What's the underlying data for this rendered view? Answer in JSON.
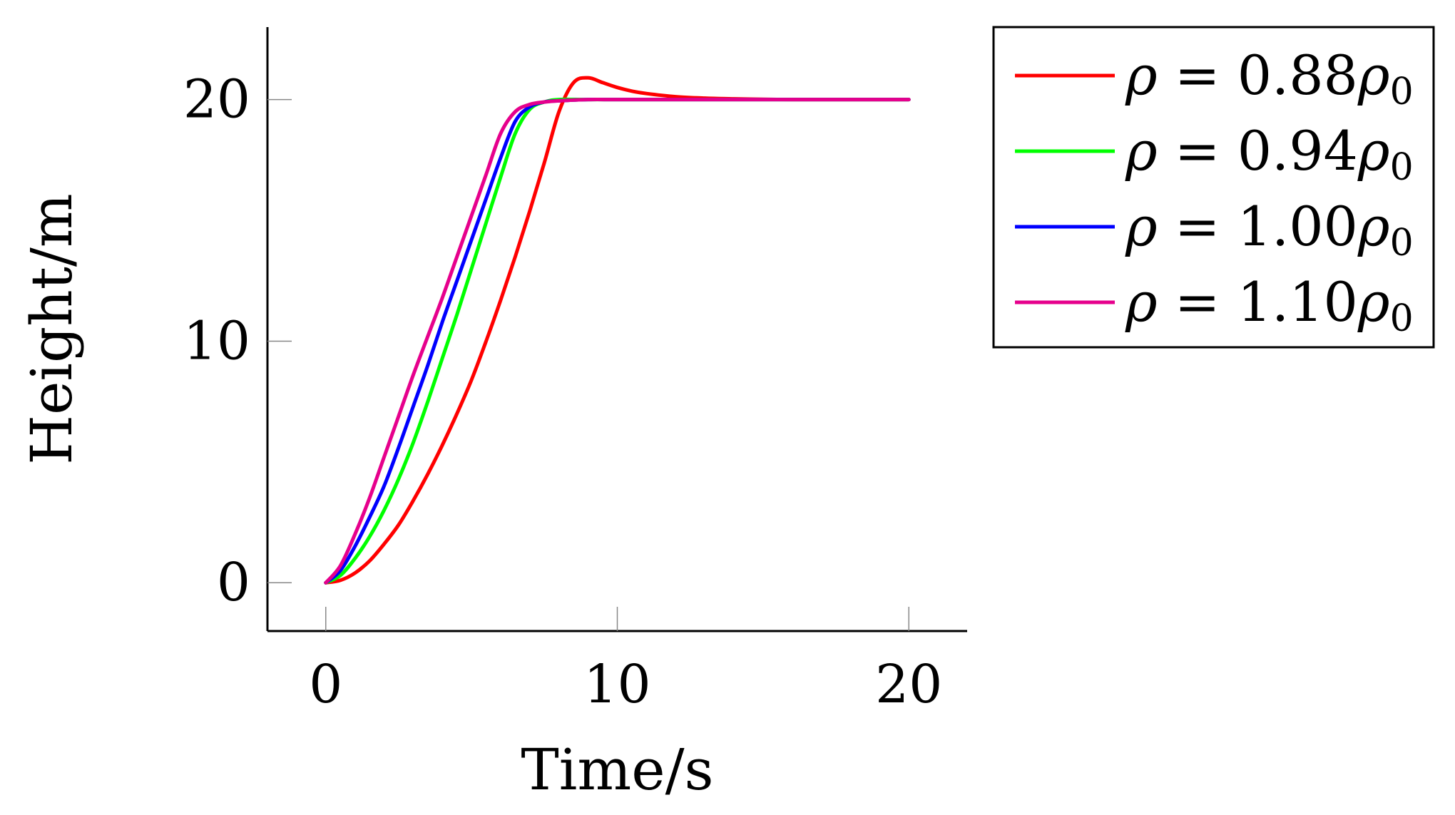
{
  "chart_data": {
    "type": "line",
    "title": "",
    "xlabel": "Time/s",
    "ylabel": "Height/m",
    "xlim": [
      -2,
      22
    ],
    "ylim": [
      -2,
      23
    ],
    "xticks": [
      0,
      10,
      20
    ],
    "yticks": [
      0,
      10,
      20
    ],
    "xtick_labels": [
      "0",
      "10",
      "20"
    ],
    "ytick_labels": [
      "0",
      "10",
      "20"
    ],
    "grid": false,
    "legend_position": "outside-top-right",
    "series": [
      {
        "name": "ρ = 0.88ρ₀",
        "color": "#ff0000",
        "x": [
          0,
          0.5,
          1,
          1.5,
          2,
          2.5,
          3,
          3.5,
          4,
          4.5,
          5,
          5.5,
          6,
          6.5,
          7,
          7.5,
          8,
          8.5,
          9,
          9.5,
          10,
          10.5,
          11,
          12,
          13,
          14,
          15,
          16,
          17,
          18,
          19,
          20
        ],
        "values": [
          0,
          0.1,
          0.4,
          0.9,
          1.6,
          2.4,
          3.4,
          4.5,
          5.7,
          7.0,
          8.4,
          10.0,
          11.7,
          13.5,
          15.4,
          17.4,
          19.5,
          20.7,
          20.9,
          20.7,
          20.5,
          20.35,
          20.25,
          20.12,
          20.06,
          20.03,
          20.01,
          20.0,
          20.0,
          20.0,
          20.0,
          20.0
        ]
      },
      {
        "name": "ρ = 0.94ρ₀",
        "color": "#00ff00",
        "x": [
          0,
          0.5,
          1,
          1.5,
          2,
          2.5,
          3,
          3.5,
          4,
          4.5,
          5,
          5.5,
          6,
          6.5,
          7,
          7.5,
          8,
          9,
          10,
          12,
          14,
          16,
          18,
          20
        ],
        "values": [
          0,
          0.3,
          1.0,
          1.9,
          3.0,
          4.3,
          5.8,
          7.5,
          9.3,
          11.1,
          13.0,
          14.9,
          16.8,
          18.6,
          19.6,
          19.9,
          20.0,
          20.0,
          20.0,
          20.0,
          20.0,
          20.0,
          20.0,
          20.0
        ]
      },
      {
        "name": "ρ = 1.00ρ₀",
        "color": "#0000ff",
        "x": [
          0,
          0.5,
          1,
          1.5,
          2,
          2.5,
          3,
          3.5,
          4,
          4.5,
          5,
          5.5,
          6,
          6.5,
          7,
          7.5,
          8,
          9,
          10,
          12,
          14,
          16,
          18,
          20
        ],
        "values": [
          0,
          0.5,
          1.5,
          2.7,
          4.0,
          5.6,
          7.3,
          9.0,
          10.8,
          12.5,
          14.2,
          15.9,
          17.6,
          19.1,
          19.7,
          19.9,
          19.95,
          20.0,
          20.0,
          20.0,
          20.0,
          20.0,
          20.0,
          20.0
        ]
      },
      {
        "name": "ρ = 1.10ρ₀",
        "color": "#e6008c",
        "x": [
          0,
          0.5,
          1,
          1.5,
          2,
          2.5,
          3,
          3.5,
          4,
          4.5,
          5,
          5.5,
          6,
          6.5,
          7,
          7.5,
          8,
          9,
          10,
          12,
          14,
          16,
          18,
          20
        ],
        "values": [
          0,
          0.7,
          2.0,
          3.5,
          5.2,
          6.9,
          8.6,
          10.2,
          11.8,
          13.5,
          15.2,
          16.9,
          18.6,
          19.5,
          19.8,
          19.9,
          19.95,
          20.0,
          20.0,
          20.0,
          20.0,
          20.0,
          20.0,
          20.0
        ]
      }
    ],
    "legend": {
      "symbol": "ρ",
      "entries": [
        {
          "equals": "=",
          "value": "0.88",
          "base": "ρ",
          "subscript": "0"
        },
        {
          "equals": "=",
          "value": "0.94",
          "base": "ρ",
          "subscript": "0"
        },
        {
          "equals": "=",
          "value": "1.00",
          "base": "ρ",
          "subscript": "0"
        },
        {
          "equals": "=",
          "value": "1.10",
          "base": "ρ",
          "subscript": "0"
        }
      ]
    }
  }
}
